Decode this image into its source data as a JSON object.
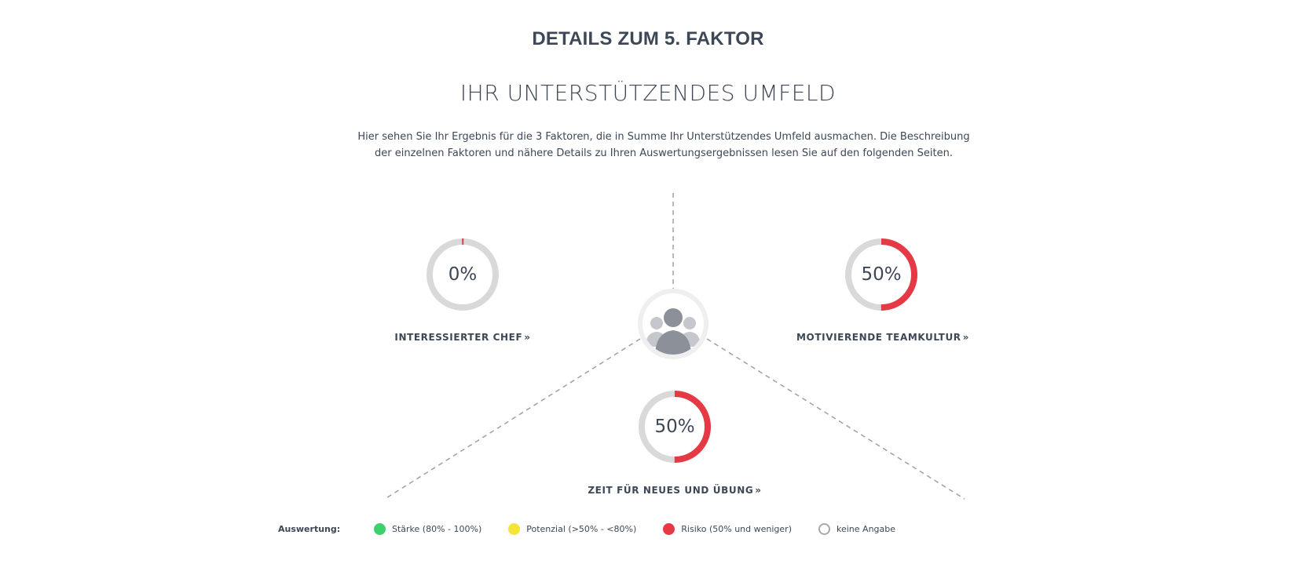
{
  "page_heading": "DETAILS ZUM 5. FAKTOR",
  "section_title": "IHR UNTERSTÜTZENDES UMFELD",
  "intro": {
    "line1": "Hier sehen Sie Ihr Ergebnis für die 3 Faktoren, die in Summe Ihr Unterstützendes Umfeld ausmachen. Die Beschreibung",
    "line2": "der einzelnen Faktoren und nähere Details zu Ihren Auswertungsergebnissen lesen Sie auf den folgenden Seiten."
  },
  "center_icon": "team-group-icon",
  "factors": [
    {
      "id": "interessierter-chef",
      "label": "INTERESSIERTER CHEF",
      "percent_text": "0%",
      "percent": 0,
      "status_color": "#e53945"
    },
    {
      "id": "motivierende-teamkultur",
      "label": "MOTIVIERENDE TEAMKULTUR",
      "percent_text": "50%",
      "percent": 50,
      "status_color": "#e53945"
    },
    {
      "id": "zeit-fuer-neues",
      "label": "ZEIT FÜR NEUES UND ÜBUNG",
      "percent_text": "50%",
      "percent": 50,
      "status_color": "#e53945"
    }
  ],
  "link_chevron": "»",
  "legend": {
    "title": "Auswertung:",
    "items": [
      {
        "label": "Stärke (80% - 100%)",
        "color": "#3ecf6f",
        "style": "filled"
      },
      {
        "label": "Potenzial (>50% - <80%)",
        "color": "#f5e43a",
        "style": "filled"
      },
      {
        "label": "Risiko (50% und weniger)",
        "color": "#e53945",
        "style": "filled"
      },
      {
        "label": "keine Angabe",
        "color": "#a8a8a8",
        "style": "outline"
      }
    ]
  },
  "colors": {
    "track": "#d9d9d9",
    "text": "#3d4756",
    "dashed_line": "#a0a0a0",
    "icon_ring": "#efefef",
    "icon_person_main": "#8c9199",
    "icon_person_side": "#c4c7cc"
  }
}
